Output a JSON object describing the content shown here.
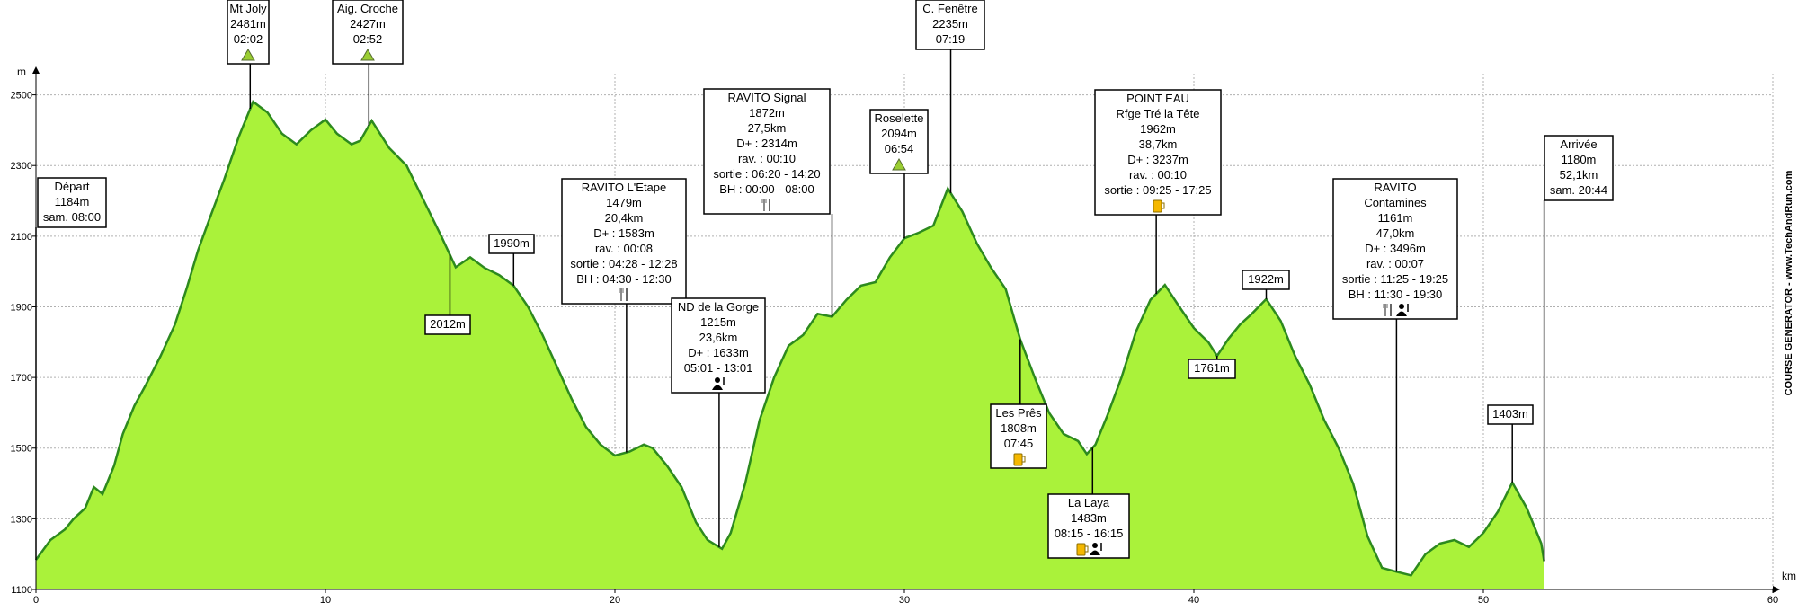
{
  "chart_data": {
    "type": "area",
    "title": "",
    "xlabel": "km",
    "ylabel": "m",
    "xlim": [
      0,
      60
    ],
    "ylim": [
      1100,
      2560
    ],
    "x_ticks": [
      0,
      10,
      20,
      30,
      40,
      50,
      60
    ],
    "y_ticks": [
      1100,
      1300,
      1500,
      1700,
      1900,
      2100,
      2300,
      2500
    ],
    "grid": true,
    "colors": {
      "fill": "#aaf23a",
      "line": "#2d8a1e",
      "grid": "#b0b0b0",
      "box_border": "#000000"
    },
    "credit": "COURSE GENERATOR - www.TechAndRun.com",
    "series": [
      {
        "x": [
          0,
          0.5,
          1,
          1.3,
          1.7,
          2.0,
          2.3,
          2.7,
          3.0,
          3.4,
          3.8,
          4.3,
          4.8,
          5.2,
          5.6,
          6.0,
          6.5,
          7.0,
          7.5,
          8.0,
          8.5,
          9.0,
          9.5,
          10.0,
          10.4,
          10.9,
          11.2,
          11.6,
          12.2,
          12.8,
          13.4,
          14.0,
          14.5,
          15.0,
          15.5,
          16.0,
          16.5,
          17.0,
          17.5,
          18.0,
          18.5,
          19.0,
          19.5,
          20.0,
          20.5,
          21.0,
          21.3,
          21.8,
          22.3,
          22.8,
          23.2,
          23.7,
          24.0,
          24.5,
          25.0,
          25.5,
          26.0,
          26.5,
          27.0,
          27.5,
          28.0,
          28.5,
          29.0,
          29.5,
          30.0,
          30.5,
          31.0,
          31.5,
          32.0,
          32.5,
          33.0,
          33.5,
          34.0,
          34.5,
          35.0,
          35.5,
          36.0,
          36.3,
          36.6,
          37.0,
          37.5,
          38.0,
          38.5,
          39.0,
          39.5,
          40.0,
          40.5,
          40.8,
          41.2,
          41.6,
          42.0,
          42.5,
          43.0,
          43.5,
          44.0,
          44.5,
          45.0,
          45.5,
          46.0,
          46.5,
          47.0,
          47.5,
          48.0,
          48.5,
          49.0,
          49.5,
          50.0,
          50.5,
          51.0,
          51.5,
          52.0,
          52.1
        ],
        "y": [
          1184,
          1240,
          1270,
          1300,
          1330,
          1390,
          1370,
          1450,
          1540,
          1620,
          1680,
          1760,
          1850,
          1950,
          2060,
          2150,
          2260,
          2380,
          2481,
          2450,
          2390,
          2360,
          2400,
          2430,
          2390,
          2360,
          2370,
          2427,
          2350,
          2300,
          2200,
          2100,
          2012,
          2040,
          2010,
          1990,
          1960,
          1900,
          1820,
          1730,
          1640,
          1560,
          1510,
          1479,
          1490,
          1510,
          1500,
          1450,
          1390,
          1290,
          1240,
          1215,
          1260,
          1400,
          1580,
          1700,
          1790,
          1820,
          1880,
          1872,
          1920,
          1960,
          1970,
          2040,
          2094,
          2110,
          2130,
          2235,
          2170,
          2080,
          2010,
          1950,
          1808,
          1700,
          1600,
          1540,
          1520,
          1483,
          1510,
          1590,
          1700,
          1830,
          1920,
          1962,
          1900,
          1840,
          1800,
          1761,
          1810,
          1850,
          1880,
          1922,
          1860,
          1760,
          1680,
          1580,
          1500,
          1400,
          1250,
          1161,
          1150,
          1140,
          1200,
          1230,
          1240,
          1220,
          1260,
          1320,
          1403,
          1330,
          1230,
          1180
        ]
      }
    ],
    "annotations": [
      {
        "km": 0.0,
        "lines": [
          "Départ",
          "1184m",
          "sam. 08:00"
        ],
        "icons": []
      },
      {
        "km": 7.4,
        "lines": [
          "Mt Joly",
          "2481m",
          "02:02"
        ],
        "icons": [
          "summit-icon"
        ]
      },
      {
        "km": 11.5,
        "lines": [
          "Aig. Croche",
          "2427m",
          "02:52"
        ],
        "icons": [
          "summit-icon"
        ]
      },
      {
        "km": 14.3,
        "lines": [
          "2012m"
        ],
        "icons": []
      },
      {
        "km": 16.5,
        "lines": [
          "1990m"
        ],
        "icons": []
      },
      {
        "km": 20.4,
        "lines": [
          "RAVITO L'Etape",
          "1479m",
          "20,4km",
          "D+ : 1583m",
          "rav. : 00:08",
          "sortie : 04:28 - 12:28",
          "BH : 04:30 - 12:30"
        ],
        "icons": [
          "food-icon"
        ]
      },
      {
        "km": 23.6,
        "lines": [
          "ND de la Gorge",
          "1215m",
          "23,6km",
          "D+ : 1633m",
          "05:01 - 13:01"
        ],
        "icons": [
          "assistance-icon"
        ]
      },
      {
        "km": 27.5,
        "lines": [
          "RAVITO Signal",
          "1872m",
          "27,5km",
          "D+ : 2314m",
          "rav. : 00:10",
          "sortie : 06:20 - 14:20",
          "BH : 00:00 - 08:00"
        ],
        "icons": [
          "food-icon"
        ]
      },
      {
        "km": 30.0,
        "lines": [
          "Roselette",
          "2094m",
          "06:54"
        ],
        "icons": [
          "summit-icon"
        ]
      },
      {
        "km": 31.6,
        "lines": [
          "C. Fenêtre",
          "2235m",
          "07:19"
        ],
        "icons": []
      },
      {
        "km": 34.0,
        "lines": [
          "Les Prês",
          "1808m",
          "07:45"
        ],
        "icons": [
          "drink-icon"
        ]
      },
      {
        "km": 36.5,
        "lines": [
          "La Laya",
          "1483m",
          "08:15 - 16:15"
        ],
        "icons": [
          "drink-icon",
          "assistance-icon"
        ]
      },
      {
        "km": 38.7,
        "lines": [
          "POINT EAU",
          "Rfge Tré la Tête",
          "1962m",
          "38,7km",
          "D+ : 3237m",
          "rav. : 00:10",
          "sortie : 09:25 - 17:25"
        ],
        "icons": [
          "drink-icon"
        ]
      },
      {
        "km": 40.8,
        "lines": [
          "1761m"
        ],
        "icons": []
      },
      {
        "km": 42.5,
        "lines": [
          "1922m"
        ],
        "icons": []
      },
      {
        "km": 47.0,
        "lines": [
          "RAVITO",
          "Contamines",
          "1161m",
          "47,0km",
          "D+ : 3496m",
          "rav. : 00:07",
          "sortie : 11:25 - 19:25",
          "BH : 11:30 - 19:30"
        ],
        "icons": [
          "food-icon",
          "assistance-icon"
        ]
      },
      {
        "km": 51.0,
        "lines": [
          "1403m"
        ],
        "icons": []
      },
      {
        "km": 52.1,
        "lines": [
          "Arrivée",
          "1180m",
          "52,1km",
          "sam. 20:44"
        ],
        "icons": []
      }
    ]
  }
}
